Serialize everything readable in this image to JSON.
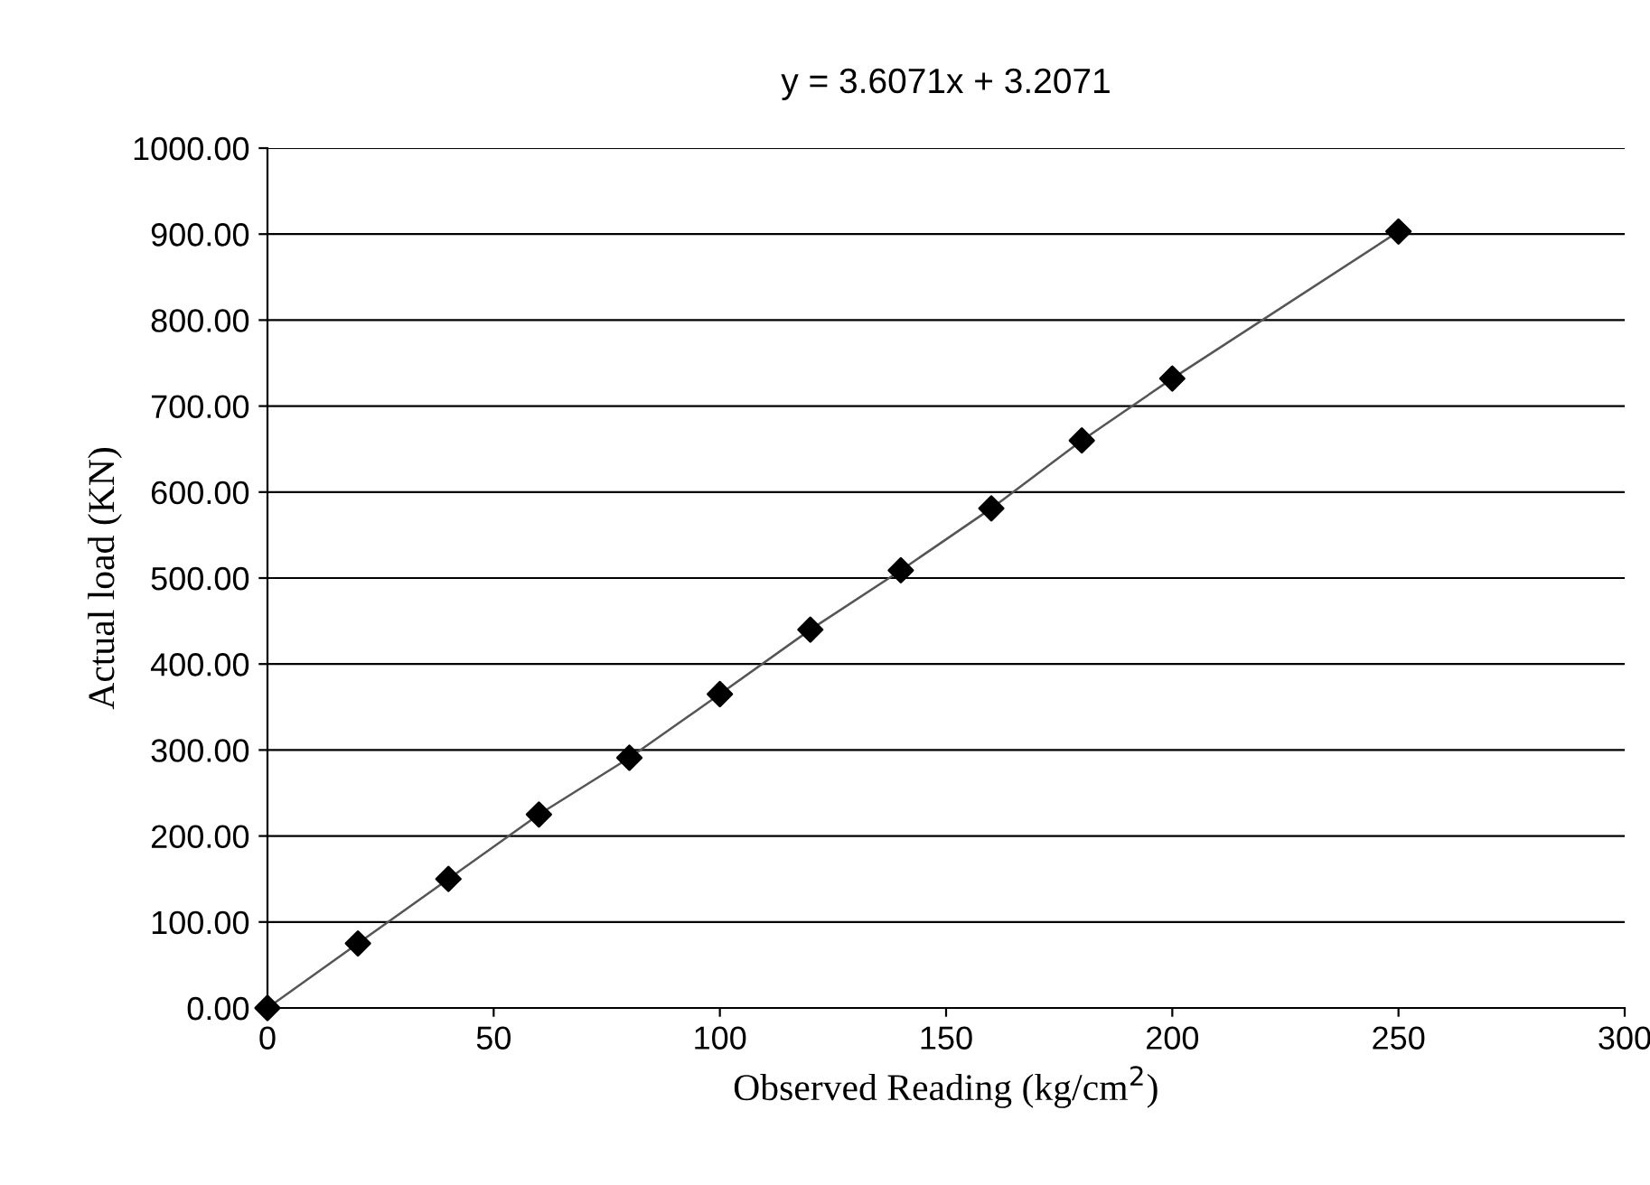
{
  "chart_data": {
    "type": "line",
    "title": "y = 3.6071x + 3.2071",
    "xlabel": "Observed Reading (kg/cm$^{2}$)",
    "ylabel": "Actual load (KN)",
    "x": [
      0,
      20,
      40,
      60,
      80,
      100,
      120,
      140,
      160,
      180,
      200,
      250
    ],
    "series": [
      {
        "color": "#000000",
        "values": [
          0,
          75,
          150,
          225,
          291,
          365,
          440,
          509,
          581,
          660,
          732,
          903
        ]
      }
    ],
    "xlim": [
      0,
      300
    ],
    "xticks": [
      0,
      50,
      100,
      150,
      200,
      250,
      300
    ],
    "ylim": [
      0,
      1000
    ],
    "yticks": [
      {
        "value": 0,
        "label": "0.00"
      },
      {
        "value": 100,
        "label": "100.00"
      },
      {
        "value": 200,
        "label": "200.00"
      },
      {
        "value": 300,
        "label": "300.00"
      },
      {
        "value": 400,
        "label": "400.00"
      },
      {
        "value": 500,
        "label": "500.00"
      },
      {
        "value": 600,
        "label": "600.00"
      },
      {
        "value": 700,
        "label": "700.00"
      },
      {
        "value": 800,
        "label": "800.00"
      },
      {
        "value": 900,
        "label": "900.00"
      },
      {
        "value": 1000,
        "label": "1000.00"
      }
    ],
    "grid": "y",
    "marker": "diamond",
    "line_style": "solid",
    "legend": false
  }
}
